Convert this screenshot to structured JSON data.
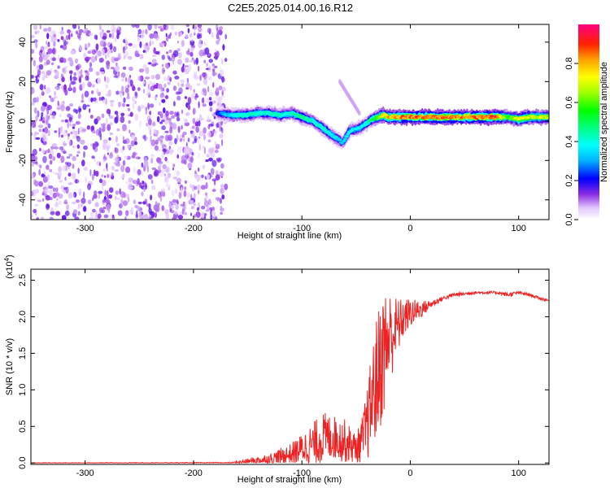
{
  "figure_title": "C2E5.2025.014.00.16.R12",
  "chart_data": [
    {
      "type": "heatmap",
      "name": "spectrogram",
      "xlabel": "Height of straight line (km)",
      "ylabel": "Frequency (Hz)",
      "xlim": [
        -350,
        128
      ],
      "ylim": [
        -50,
        49
      ],
      "x_ticks": [
        -300,
        -200,
        -100,
        0,
        100
      ],
      "x_tick_labels": [
        "-300",
        "-200",
        "-100",
        "0",
        "100"
      ],
      "y_ticks": [
        -40,
        -20,
        0,
        20,
        40
      ],
      "y_tick_labels": [
        "-40",
        "-20",
        "0",
        "20",
        "40"
      ],
      "noise_region_x": [
        -350,
        -170
      ],
      "ridge": {
        "x": [
          -178,
          -165,
          -150,
          -140,
          -130,
          -120,
          -110,
          -100,
          -90,
          -80,
          -70,
          -62,
          -56,
          -50,
          -45,
          -40,
          -35,
          -30,
          -25,
          -20,
          -10,
          0,
          20,
          40,
          60,
          80,
          90,
          100,
          110,
          120,
          128
        ],
        "y": [
          4,
          3,
          3,
          4,
          4,
          3,
          4,
          2,
          0,
          -4,
          -8,
          -11,
          -5,
          -4,
          -3,
          -1,
          1,
          2,
          3,
          2,
          2,
          2,
          2,
          2,
          2,
          2,
          2,
          1,
          2,
          2,
          2
        ],
        "amplitude": [
          0.25,
          0.4,
          0.45,
          0.45,
          0.45,
          0.45,
          0.45,
          0.5,
          0.45,
          0.45,
          0.4,
          0.35,
          0.4,
          0.4,
          0.4,
          0.45,
          0.55,
          0.6,
          0.8,
          0.85,
          0.9,
          0.92,
          0.92,
          0.9,
          0.92,
          0.95,
          0.6,
          0.8,
          0.75,
          0.75,
          0.7
        ]
      },
      "colorbar": {
        "label": "Normalized spectral amplitude",
        "range": [
          0,
          1
        ],
        "ticks": [
          0.0,
          0.2,
          0.4,
          0.6,
          0.8
        ],
        "tick_labels": [
          "0.0",
          "0.2",
          "0.4",
          "0.6",
          "0.8"
        ]
      }
    },
    {
      "type": "line",
      "name": "snr",
      "xlabel": "Height of straight line (km)",
      "ylabel": "SNR (10 * v/v)",
      "y_multiplier": "(x10",
      "y_multiplier_exp": "4",
      "y_multiplier_close": ")",
      "xlim": [
        -350,
        128
      ],
      "ylim": [
        -0.02,
        2.65
      ],
      "x_ticks": [
        -300,
        -200,
        -100,
        0,
        100
      ],
      "x_tick_labels": [
        "-300",
        "-200",
        "-100",
        "0",
        "100"
      ],
      "y_ticks": [
        0.0,
        0.5,
        1.0,
        1.5,
        2.0,
        2.5
      ],
      "y_tick_labels": [
        "0.0",
        "0.5",
        "1.0",
        "1.5",
        "2.0",
        "2.5"
      ],
      "color": "#ee2222",
      "envelope": {
        "x": [
          -350,
          -165,
          -150,
          -130,
          -110,
          -100,
          -90,
          -80,
          -70,
          -60,
          -50,
          -45,
          -40,
          -35,
          -30,
          -25,
          -20,
          -15,
          -10,
          -5,
          0,
          10,
          20,
          30,
          40,
          60,
          80,
          90,
          100,
          110,
          120,
          128
        ],
        "base": [
          0.0,
          0.0,
          0.02,
          0.05,
          0.12,
          0.2,
          0.25,
          0.35,
          0.35,
          0.3,
          0.2,
          0.3,
          0.5,
          0.9,
          1.2,
          1.5,
          1.7,
          1.8,
          1.9,
          2.0,
          2.05,
          2.1,
          2.18,
          2.25,
          2.3,
          2.33,
          2.33,
          2.3,
          2.33,
          2.3,
          2.25,
          2.22
        ],
        "noise": [
          0.005,
          0.01,
          0.04,
          0.08,
          0.15,
          0.2,
          0.3,
          0.35,
          0.3,
          0.3,
          0.2,
          0.3,
          0.5,
          0.7,
          0.9,
          0.9,
          0.7,
          0.5,
          0.35,
          0.25,
          0.2,
          0.12,
          0.05,
          0.03,
          0.03,
          0.02,
          0.02,
          0.03,
          0.02,
          0.02,
          0.02,
          0.02
        ]
      }
    }
  ]
}
